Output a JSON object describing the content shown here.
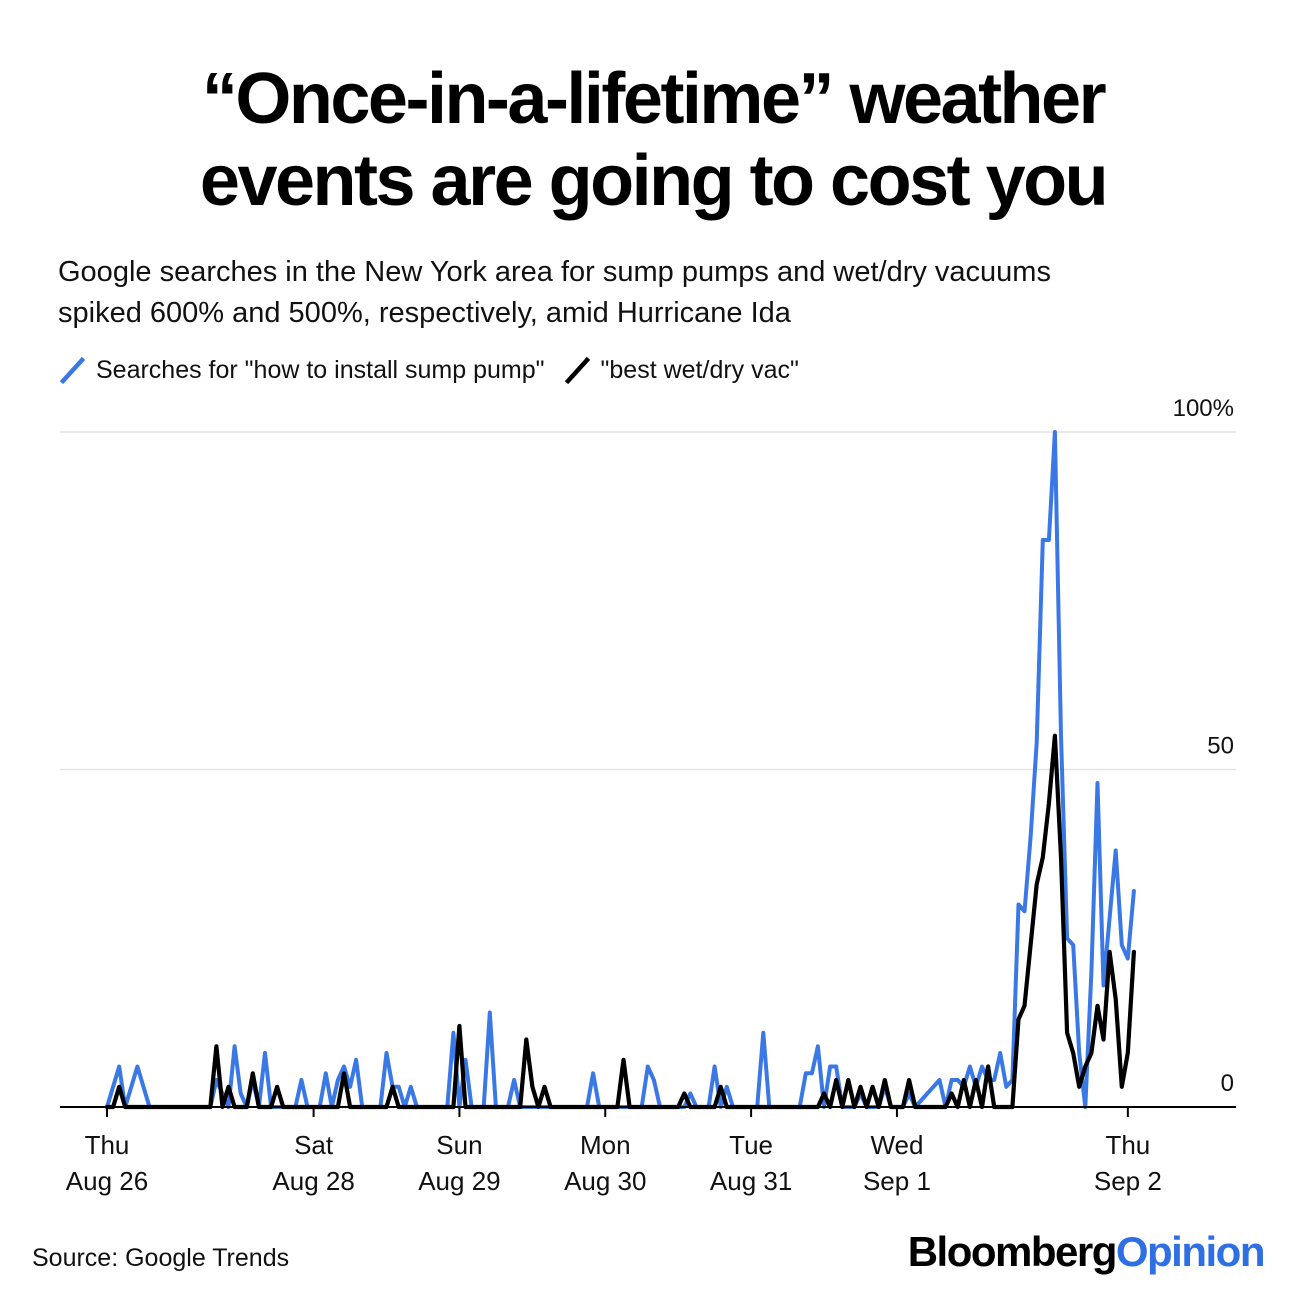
{
  "title_line1": "“Once-in-a-lifetime” weather",
  "title_line2": "events are going to cost you",
  "subtitle_line1": "Google searches in the New York area for sump pumps and wet/dry vacuums",
  "subtitle_line2": "spiked 600% and 500%, respectively, amid Hurricane Ida",
  "legend": [
    {
      "label": "Searches for \"how to install sump pump\"",
      "color": "#3a78e6"
    },
    {
      "label": "\"best wet/dry vac\"",
      "color": "#000000"
    }
  ],
  "source": "Source: Google Trends",
  "brand": {
    "part1": "Bloomberg",
    "part2": "Opinion",
    "color1": "#000000",
    "color2": "#2f6fe4"
  },
  "chart_data": {
    "type": "line",
    "y_ticks": [
      "100%",
      "50",
      "0"
    ],
    "y_tick_values": [
      100,
      50,
      0
    ],
    "ylim": [
      0,
      100
    ],
    "xlim": [
      0,
      170
    ],
    "x_ticks": [
      {
        "x": 0,
        "line1": "Thu",
        "line2": "Aug 26"
      },
      {
        "x": 34,
        "line1": "Sat",
        "line2": "Aug 28"
      },
      {
        "x": 58,
        "line1": "Sun",
        "line2": "Aug 29"
      },
      {
        "x": 82,
        "line1": "Mon",
        "line2": "Aug 30"
      },
      {
        "x": 106,
        "line1": "Tue",
        "line2": "Aug 31"
      },
      {
        "x": 130,
        "line1": "Wed",
        "line2": "Sep 1"
      },
      {
        "x": 168,
        "line1": "Thu",
        "line2": "Sep 2"
      }
    ],
    "grid": true,
    "series": [
      {
        "name": "Searches for \"how to install sump pump\"",
        "color": "#3a78e6",
        "points": [
          [
            0,
            0
          ],
          [
            2,
            6
          ],
          [
            3,
            0
          ],
          [
            5,
            6
          ],
          [
            7,
            0
          ],
          [
            17,
            0
          ],
          [
            18,
            4
          ],
          [
            20,
            0
          ],
          [
            21,
            9
          ],
          [
            22,
            2
          ],
          [
            23,
            0
          ],
          [
            24,
            4
          ],
          [
            25,
            0
          ],
          [
            26,
            8
          ],
          [
            27,
            0
          ],
          [
            31,
            0
          ],
          [
            32,
            4
          ],
          [
            33,
            0
          ],
          [
            35,
            0
          ],
          [
            36,
            5
          ],
          [
            37,
            0
          ],
          [
            38,
            4
          ],
          [
            39,
            6
          ],
          [
            40,
            3
          ],
          [
            41,
            7
          ],
          [
            42,
            0
          ],
          [
            45,
            0
          ],
          [
            46,
            8
          ],
          [
            47,
            3
          ],
          [
            48,
            3
          ],
          [
            49,
            0
          ],
          [
            50,
            3
          ],
          [
            51,
            0
          ],
          [
            56,
            0
          ],
          [
            57,
            11
          ],
          [
            58,
            0
          ],
          [
            59,
            7
          ],
          [
            60,
            0
          ],
          [
            62,
            0
          ],
          [
            63,
            14
          ],
          [
            64,
            0
          ],
          [
            66,
            0
          ],
          [
            67,
            4
          ],
          [
            68,
            0
          ],
          [
            79,
            0
          ],
          [
            80,
            5
          ],
          [
            81,
            0
          ],
          [
            88,
            0
          ],
          [
            89,
            6
          ],
          [
            90,
            4
          ],
          [
            91,
            0
          ],
          [
            95,
            0
          ],
          [
            96,
            2
          ],
          [
            97,
            0
          ],
          [
            99,
            0
          ],
          [
            100,
            6
          ],
          [
            101,
            0
          ],
          [
            102,
            3
          ],
          [
            103,
            0
          ],
          [
            107,
            0
          ],
          [
            108,
            11
          ],
          [
            109,
            0
          ],
          [
            114,
            0
          ],
          [
            115,
            5
          ],
          [
            116,
            5
          ],
          [
            117,
            9
          ],
          [
            118,
            0
          ],
          [
            119,
            6
          ],
          [
            120,
            6
          ],
          [
            121,
            0
          ],
          [
            123,
            0
          ],
          [
            124,
            2
          ],
          [
            125,
            0
          ],
          [
            127,
            0
          ],
          [
            128,
            3
          ],
          [
            129,
            0
          ],
          [
            131,
            0
          ],
          [
            132,
            2
          ],
          [
            133,
            0
          ],
          [
            137,
            4
          ],
          [
            138,
            0
          ],
          [
            139,
            4
          ],
          [
            140,
            4
          ],
          [
            141,
            3
          ],
          [
            142,
            6
          ],
          [
            143,
            3
          ],
          [
            144,
            6
          ],
          [
            145,
            4
          ],
          [
            146,
            4
          ],
          [
            147,
            8
          ],
          [
            148,
            3
          ],
          [
            149,
            4
          ],
          [
            150,
            30
          ],
          [
            151,
            29
          ],
          [
            152,
            40
          ],
          [
            153,
            54
          ],
          [
            154,
            84
          ],
          [
            155,
            84
          ],
          [
            156,
            100
          ],
          [
            157,
            55
          ],
          [
            158,
            25
          ],
          [
            159,
            24
          ],
          [
            160,
            8
          ],
          [
            161,
            0
          ],
          [
            162,
            20
          ],
          [
            163,
            48
          ],
          [
            164,
            18
          ],
          [
            165,
            28
          ],
          [
            166,
            38
          ],
          [
            167,
            24
          ],
          [
            168,
            22
          ],
          [
            169,
            32
          ]
        ]
      },
      {
        "name": "\"best wet/dry vac\"",
        "color": "#000000",
        "points": [
          [
            0,
            0
          ],
          [
            1,
            0
          ],
          [
            2,
            3
          ],
          [
            3,
            0
          ],
          [
            17,
            0
          ],
          [
            18,
            9
          ],
          [
            19,
            0
          ],
          [
            20,
            3
          ],
          [
            21,
            0
          ],
          [
            23,
            0
          ],
          [
            24,
            5
          ],
          [
            25,
            0
          ],
          [
            27,
            0
          ],
          [
            28,
            3
          ],
          [
            29,
            0
          ],
          [
            38,
            0
          ],
          [
            39,
            5
          ],
          [
            40,
            0
          ],
          [
            46,
            0
          ],
          [
            47,
            3
          ],
          [
            48,
            0
          ],
          [
            57,
            0
          ],
          [
            58,
            12
          ],
          [
            59,
            0
          ],
          [
            68,
            0
          ],
          [
            69,
            10
          ],
          [
            70,
            3
          ],
          [
            71,
            0
          ],
          [
            72,
            3
          ],
          [
            73,
            0
          ],
          [
            84,
            0
          ],
          [
            85,
            7
          ],
          [
            86,
            0
          ],
          [
            94,
            0
          ],
          [
            95,
            2
          ],
          [
            96,
            0
          ],
          [
            100,
            0
          ],
          [
            101,
            3
          ],
          [
            102,
            0
          ],
          [
            117,
            0
          ],
          [
            118,
            2
          ],
          [
            119,
            0
          ],
          [
            120,
            4
          ],
          [
            121,
            0
          ],
          [
            122,
            4
          ],
          [
            123,
            0
          ],
          [
            124,
            3
          ],
          [
            125,
            0
          ],
          [
            126,
            3
          ],
          [
            127,
            0
          ],
          [
            128,
            4
          ],
          [
            129,
            0
          ],
          [
            131,
            0
          ],
          [
            132,
            4
          ],
          [
            133,
            0
          ],
          [
            138,
            0
          ],
          [
            139,
            2
          ],
          [
            140,
            0
          ],
          [
            141,
            4
          ],
          [
            142,
            0
          ],
          [
            143,
            4
          ],
          [
            144,
            0
          ],
          [
            145,
            6
          ],
          [
            146,
            0
          ],
          [
            147,
            0
          ],
          [
            148,
            0
          ],
          [
            149,
            0
          ],
          [
            150,
            13
          ],
          [
            151,
            15
          ],
          [
            152,
            24
          ],
          [
            153,
            33
          ],
          [
            154,
            37
          ],
          [
            155,
            45
          ],
          [
            156,
            55
          ],
          [
            157,
            37
          ],
          [
            158,
            11
          ],
          [
            159,
            8
          ],
          [
            160,
            3
          ],
          [
            161,
            6
          ],
          [
            162,
            8
          ],
          [
            163,
            15
          ],
          [
            164,
            10
          ],
          [
            165,
            23
          ],
          [
            166,
            16
          ],
          [
            167,
            3
          ],
          [
            168,
            8
          ],
          [
            169,
            23
          ]
        ]
      }
    ]
  }
}
